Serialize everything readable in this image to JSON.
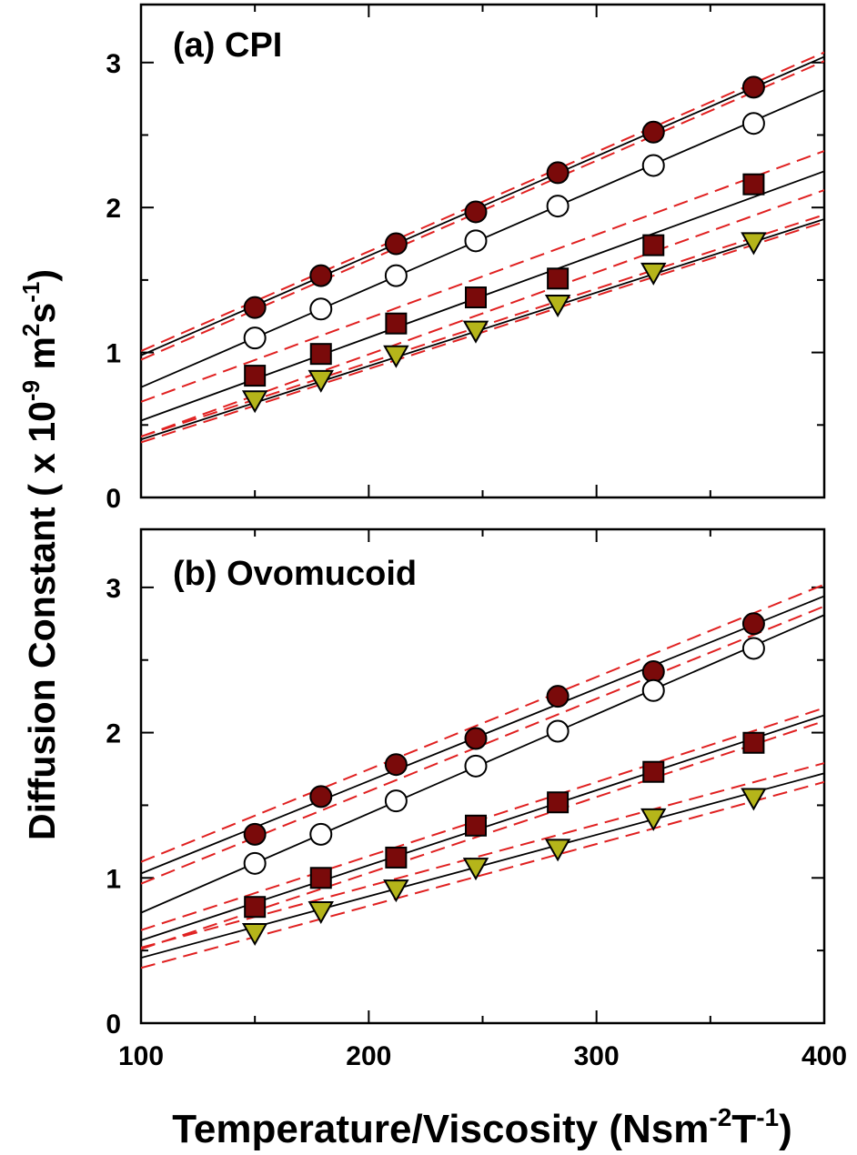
{
  "figure": {
    "xlabel": {
      "main": "Temperature/Viscosity (Nsm",
      "sup1": "-2",
      "mid": "T",
      "sup2": "-1",
      "end": ")"
    },
    "ylabel": {
      "main": "Diffusion Constant ( x 10",
      "sup1": "-9",
      "mid": " m",
      "sup2": "2",
      "mid2": "s",
      "sup3": "-1",
      "end": ")"
    }
  },
  "chart_data": [
    {
      "type": "scatter",
      "panel": "a",
      "title": "(a) CPI",
      "xlim": [
        100,
        400
      ],
      "ylim": [
        0,
        3.4
      ],
      "xticks": [
        100,
        200,
        300,
        400
      ],
      "yticks": [
        0,
        1,
        2,
        3
      ],
      "ytick_labels": [
        "0",
        "1",
        "2",
        "3"
      ],
      "x": [
        150,
        179,
        212,
        247,
        283,
        325,
        369
      ],
      "series": [
        {
          "marker": "circle",
          "fill": "#7a0a0a",
          "values": [
            1.31,
            1.53,
            1.75,
            1.97,
            2.24,
            2.52,
            2.83
          ],
          "fit": [
            0.98,
            3.04
          ],
          "band": {
            "lower": [
              0.95,
              3.01
            ],
            "upper": [
              1.01,
              3.07
            ]
          }
        },
        {
          "marker": "circle",
          "fill": "#ffffff",
          "values": [
            1.1,
            1.3,
            1.53,
            1.77,
            2.01,
            2.29,
            2.58
          ],
          "fit": [
            0.76,
            2.81
          ],
          "band": null
        },
        {
          "marker": "square",
          "fill": "#7a0a0a",
          "values": [
            0.84,
            0.99,
            1.2,
            1.38,
            1.51,
            1.74,
            2.16
          ],
          "fit": [
            0.53,
            2.25
          ],
          "band": {
            "lower": [
              0.42,
              2.12
            ],
            "upper": [
              0.66,
              2.39
            ]
          }
        },
        {
          "marker": "triangle-down",
          "fill": "#b5b51a",
          "values": [
            0.67,
            0.81,
            0.98,
            1.15,
            1.33,
            1.55,
            1.76
          ],
          "fit": [
            0.4,
            1.92
          ],
          "band": {
            "lower": [
              0.38,
              1.9
            ],
            "upper": [
              0.42,
              1.95
            ]
          }
        }
      ]
    },
    {
      "type": "scatter",
      "panel": "b",
      "title": "(b) Ovomucoid",
      "xlim": [
        100,
        400
      ],
      "ylim": [
        0,
        3.4
      ],
      "xticks": [
        100,
        200,
        300,
        400
      ],
      "xtick_labels": [
        "100",
        "200",
        "300",
        "400"
      ],
      "yticks": [
        0,
        1,
        2,
        3
      ],
      "ytick_labels": [
        "0",
        "1",
        "2",
        "3"
      ],
      "x": [
        150,
        179,
        212,
        247,
        283,
        325,
        369
      ],
      "series": [
        {
          "marker": "circle",
          "fill": "#7a0a0a",
          "values": [
            1.3,
            1.56,
            1.78,
            1.96,
            2.25,
            2.42,
            2.75
          ],
          "fit": [
            1.03,
            2.94
          ],
          "band": {
            "lower": [
              0.96,
              2.87
            ],
            "upper": [
              1.11,
              3.02
            ]
          }
        },
        {
          "marker": "circle",
          "fill": "#ffffff",
          "values": [
            1.1,
            1.3,
            1.53,
            1.77,
            2.01,
            2.29,
            2.58
          ],
          "fit": [
            0.76,
            2.81
          ],
          "band": null
        },
        {
          "marker": "square",
          "fill": "#7a0a0a",
          "values": [
            0.8,
            1.0,
            1.14,
            1.36,
            1.52,
            1.73,
            1.93
          ],
          "fit": [
            0.57,
            2.12
          ],
          "band": {
            "lower": [
              0.51,
              2.08
            ],
            "upper": [
              0.64,
              2.17
            ]
          }
        },
        {
          "marker": "triangle-down",
          "fill": "#b5b51a",
          "values": [
            0.62,
            0.77,
            0.92,
            1.07,
            1.2,
            1.41,
            1.55
          ],
          "fit": [
            0.45,
            1.72
          ],
          "band": {
            "lower": [
              0.38,
              1.66
            ],
            "upper": [
              0.52,
              1.79
            ]
          }
        }
      ]
    }
  ],
  "colors": {
    "fit_line": "#000000",
    "confidence_band": "#e02020",
    "frame": "#000000"
  }
}
